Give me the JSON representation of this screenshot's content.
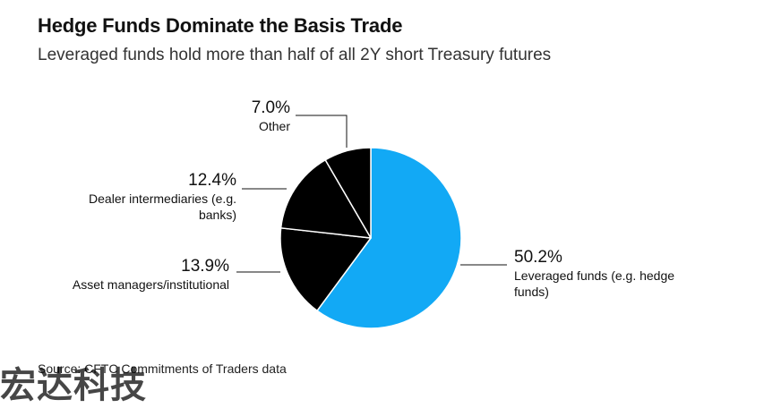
{
  "chart_data": {
    "type": "pie",
    "title": "Hedge Funds Dominate the Basis Trade",
    "subtitle": "Leveraged funds hold more than half of all 2Y short Treasury futures",
    "slices": [
      {
        "value_label": "50.2%",
        "value": 50.2,
        "label_lines": [
          "Leveraged funds (e.g. hedge",
          "funds)"
        ],
        "color": "#12a9f5"
      },
      {
        "value_label": "13.9%",
        "value": 13.9,
        "label_lines": [
          "Asset managers/institutional"
        ],
        "color": "#000000"
      },
      {
        "value_label": "12.4%",
        "value": 12.4,
        "label_lines": [
          "Dealer intermediaries (e.g.",
          "banks)"
        ],
        "color": "#000000"
      },
      {
        "value_label": "7.0%",
        "value": 7.0,
        "label_lines": [
          "Other"
        ],
        "color": "#000000"
      }
    ],
    "colors": {
      "highlight": "#12a9f5",
      "other": "#000000",
      "separator": "#ffffff"
    },
    "source": "Source: CFTC Commitments of Traders data"
  },
  "watermark": "宏达科技"
}
